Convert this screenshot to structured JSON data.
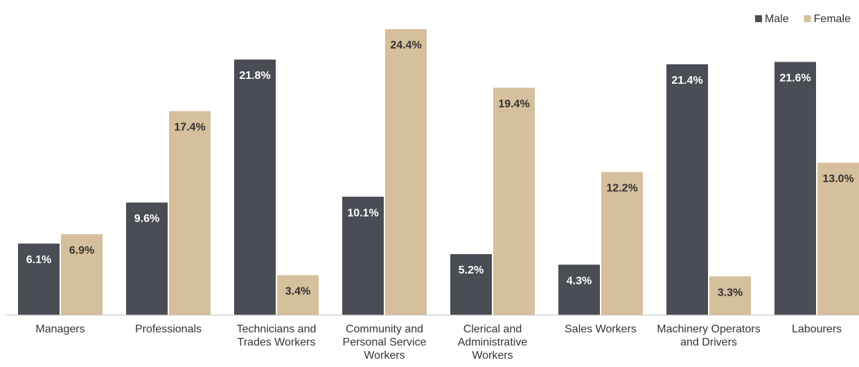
{
  "chart_data": {
    "type": "bar",
    "categories": [
      "Managers",
      "Professionals",
      "Technicians and Trades Workers",
      "Community and Personal Service Workers",
      "Clerical and Administrative Workers",
      "Sales Workers",
      "Machinery Operators and Drivers",
      "Labourers"
    ],
    "series": [
      {
        "name": "Male",
        "color": "#4a4d54",
        "label_color": "#ffffff",
        "values": [
          6.1,
          9.6,
          21.8,
          10.1,
          5.2,
          4.3,
          21.4,
          21.6
        ],
        "value_labels": [
          "6.1%",
          "9.6%",
          "21.8%",
          "10.1%",
          "5.2%",
          "4.3%",
          "21.4%",
          "21.6%"
        ]
      },
      {
        "name": "Female",
        "color": "#d6bf9c",
        "label_color": "#333333",
        "values": [
          6.9,
          17.4,
          3.4,
          24.4,
          19.4,
          12.2,
          3.3,
          13.0
        ],
        "value_labels": [
          "6.9%",
          "17.4%",
          "3.4%",
          "24.4%",
          "19.4%",
          "12.2%",
          "3.3%",
          "13.0%"
        ]
      }
    ],
    "legend": "top-right"
  }
}
